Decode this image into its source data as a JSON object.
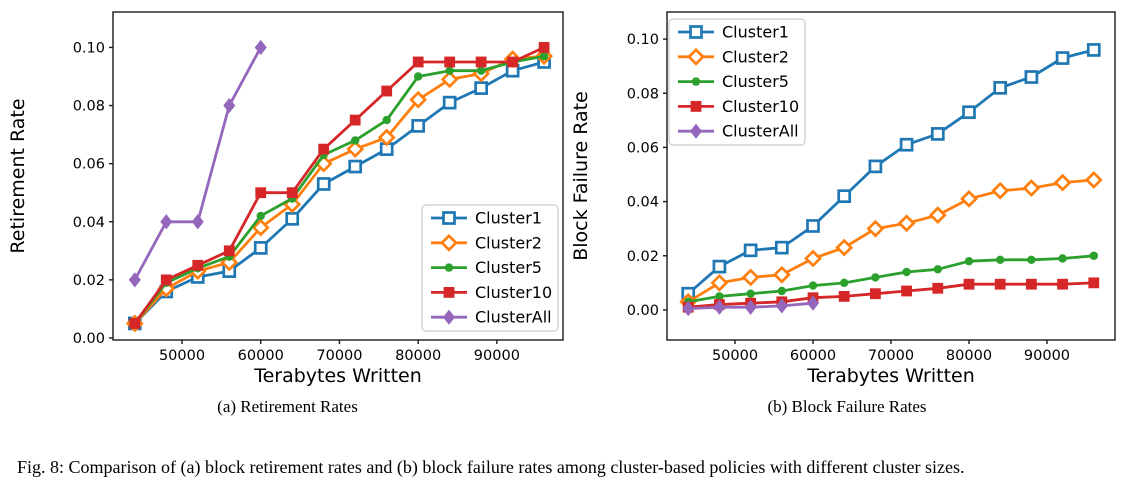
{
  "caption": {
    "figure": "Fig. 8: Comparison of (a) block retirement rates and (b) block failure rates among cluster-based policies with different cluster sizes."
  },
  "colors": {
    "cluster1": "#1f77b4",
    "cluster2": "#ff7f0e",
    "cluster5": "#2ca02c",
    "cluster10": "#d62728",
    "clusterAll": "#9467bd",
    "axis": "#1a1a1a",
    "legend_border": "#cccccc"
  },
  "chart_data": [
    {
      "id": "retirement-rates",
      "type": "line",
      "caption": "(a) Retirement Rates",
      "xlabel": "Terabytes Written",
      "ylabel": "Retirement Rate",
      "x": [
        44000,
        48000,
        52000,
        56000,
        60000,
        64000,
        68000,
        72000,
        76000,
        80000,
        84000,
        88000,
        92000,
        96000
      ],
      "xticks": [
        50000,
        60000,
        70000,
        80000,
        90000
      ],
      "yticks": [
        0.0,
        0.02,
        0.04,
        0.06,
        0.08,
        0.1
      ],
      "xlim": [
        41230,
        98400
      ],
      "ylim": [
        -0.0007,
        0.1122
      ],
      "grid": false,
      "legend_position": "lower-right",
      "series": [
        {
          "name": "Cluster1",
          "color": "#1f77b4",
          "marker": "open-square",
          "values": [
            0.005,
            0.016,
            0.021,
            0.023,
            0.031,
            0.041,
            0.053,
            0.059,
            0.065,
            0.073,
            0.081,
            0.086,
            0.092,
            0.095
          ]
        },
        {
          "name": "Cluster2",
          "color": "#ff7f0e",
          "marker": "open-diamond",
          "values": [
            0.005,
            0.017,
            0.023,
            0.026,
            0.038,
            0.046,
            0.06,
            0.065,
            0.069,
            0.082,
            0.089,
            0.091,
            0.096,
            0.097
          ]
        },
        {
          "name": "Cluster5",
          "color": "#2ca02c",
          "marker": "dot",
          "values": [
            0.005,
            0.019,
            0.024,
            0.028,
            0.042,
            0.048,
            0.063,
            0.068,
            0.075,
            0.09,
            0.092,
            0.092,
            0.095,
            0.097
          ]
        },
        {
          "name": "Cluster10",
          "color": "#d62728",
          "marker": "filled-square",
          "values": [
            0.005,
            0.02,
            0.025,
            0.03,
            0.05,
            0.05,
            0.065,
            0.075,
            0.085,
            0.095,
            0.095,
            0.095,
            0.095,
            0.1
          ]
        },
        {
          "name": "ClusterAll",
          "color": "#9467bd",
          "marker": "filled-diamond",
          "x": [
            44000,
            48000,
            52000,
            56000,
            60000
          ],
          "values": [
            0.02,
            0.04,
            0.04,
            0.08,
            0.1
          ]
        }
      ]
    },
    {
      "id": "block-failure-rates",
      "type": "line",
      "caption": "(b) Block Failure Rates",
      "xlabel": "Terabytes Written",
      "ylabel": "Block Failure Rate",
      "x": [
        44000,
        48000,
        52000,
        56000,
        60000,
        64000,
        68000,
        72000,
        76000,
        80000,
        84000,
        88000,
        92000,
        96000
      ],
      "xticks": [
        50000,
        60000,
        70000,
        80000,
        90000
      ],
      "yticks": [
        0.0,
        0.02,
        0.04,
        0.06,
        0.08,
        0.1
      ],
      "xlim": [
        41280,
        98720
      ],
      "ylim": [
        -0.0111,
        0.11
      ],
      "grid": false,
      "legend_position": "upper-left",
      "series": [
        {
          "name": "Cluster1",
          "color": "#1f77b4",
          "marker": "open-square",
          "values": [
            0.006,
            0.016,
            0.022,
            0.023,
            0.031,
            0.042,
            0.053,
            0.061,
            0.065,
            0.073,
            0.082,
            0.086,
            0.093,
            0.096
          ]
        },
        {
          "name": "Cluster2",
          "color": "#ff7f0e",
          "marker": "open-diamond",
          "values": [
            0.003,
            0.01,
            0.012,
            0.013,
            0.019,
            0.023,
            0.03,
            0.032,
            0.035,
            0.041,
            0.044,
            0.045,
            0.047,
            0.048
          ]
        },
        {
          "name": "Cluster5",
          "color": "#2ca02c",
          "marker": "dot",
          "values": [
            0.003,
            0.005,
            0.006,
            0.007,
            0.009,
            0.01,
            0.012,
            0.014,
            0.015,
            0.018,
            0.0185,
            0.0185,
            0.019,
            0.02
          ]
        },
        {
          "name": "Cluster10",
          "color": "#d62728",
          "marker": "filled-square",
          "values": [
            0.001,
            0.002,
            0.0025,
            0.003,
            0.0045,
            0.005,
            0.006,
            0.007,
            0.008,
            0.0095,
            0.0095,
            0.0095,
            0.0095,
            0.01
          ]
        },
        {
          "name": "ClusterAll",
          "color": "#9467bd",
          "marker": "filled-diamond",
          "x": [
            44000,
            48000,
            52000,
            56000,
            60000
          ],
          "values": [
            0.0005,
            0.001,
            0.001,
            0.0015,
            0.0025
          ]
        }
      ]
    }
  ]
}
